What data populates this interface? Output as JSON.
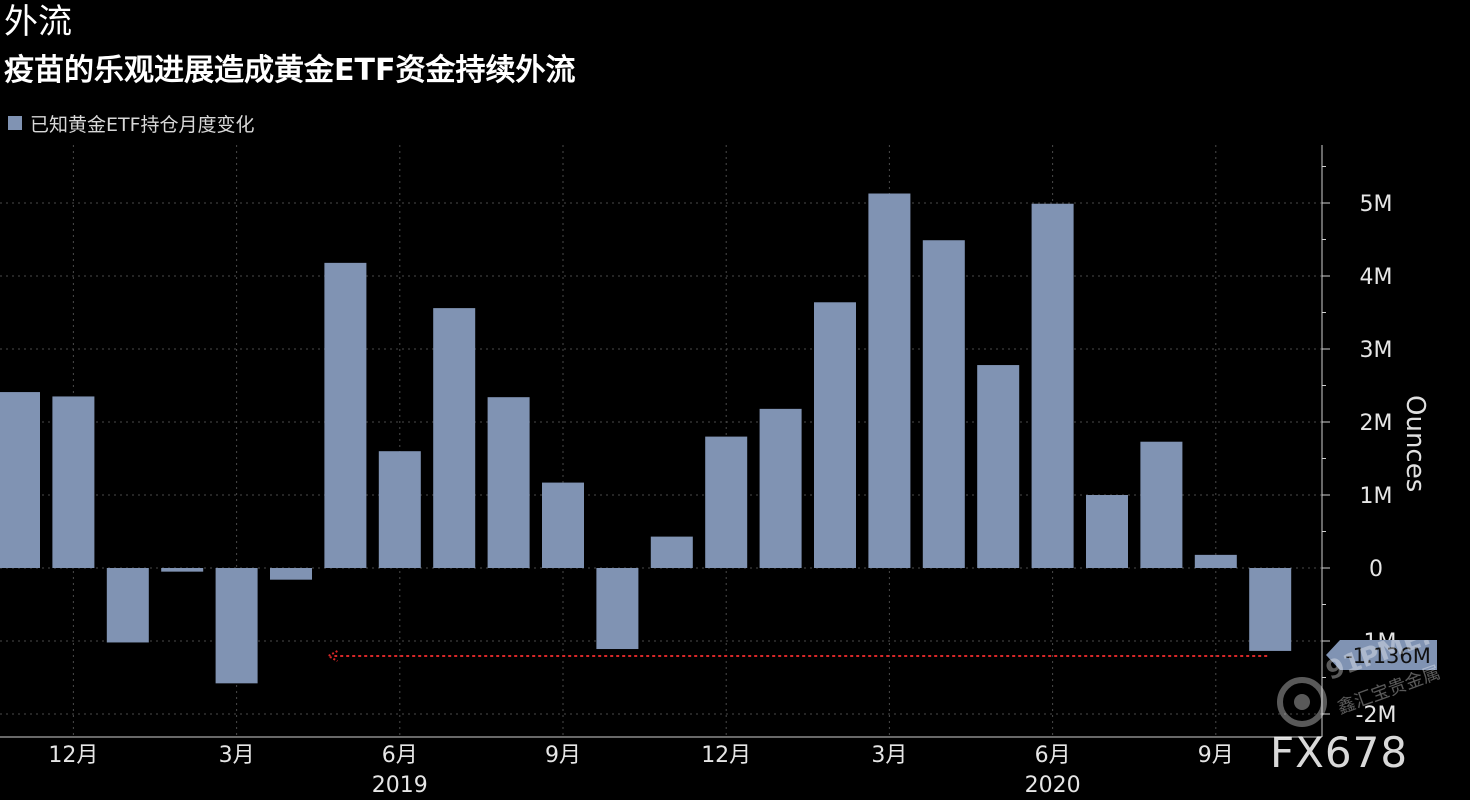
{
  "colors": {
    "background": "#000000",
    "bar": "#8093b3",
    "grid": "#4a4a4a",
    "axis_text": "#e6e6e6",
    "annotation_line": "#d62728",
    "value_label_bg": "#8093b3"
  },
  "watermarks": {
    "fx678": "FX678",
    "site": "91PME.COM",
    "site_chinese": "鑫汇宝贵金属"
  },
  "chart_data": {
    "type": "bar",
    "title": "外流",
    "subtitle": "疫苗的乐观进展造成黄金ETF资金持续外流",
    "ylabel": "Ounces",
    "ylim": [
      -2,
      5.8
    ],
    "y_unit": "M",
    "yticks": [
      "5M",
      "4M",
      "3M",
      "2M",
      "1M",
      "0",
      "-1M",
      "-2M"
    ],
    "grid": true,
    "legend_position": "top-left",
    "series": [
      {
        "name": "已知黄金ETF持仓月度变化",
        "values": [
          2.41,
          2.35,
          -1.02,
          -0.05,
          -1.58,
          -0.16,
          4.18,
          1.6,
          3.56,
          2.34,
          1.17,
          -1.11,
          0.43,
          1.8,
          2.18,
          3.64,
          5.13,
          4.49,
          2.78,
          4.99,
          1.0,
          1.73,
          0.18,
          -1.136
        ]
      }
    ],
    "categories": [
      "2018-11",
      "2018-12",
      "2019-01",
      "2019-02",
      "2019-03",
      "2019-04",
      "2019-05",
      "2019-06",
      "2019-07",
      "2019-08",
      "2019-09",
      "2019-10",
      "2019-11",
      "2019-12",
      "2020-01",
      "2020-02",
      "2020-03",
      "2020-04",
      "2020-05",
      "2020-06",
      "2020-07",
      "2020-08",
      "2020-09",
      "2020-10"
    ],
    "x_tick_labels": [
      {
        "label": "12月",
        "category": "2018-12"
      },
      {
        "label": "3月",
        "category": "2019-03"
      },
      {
        "label": "6月",
        "category": "2019-06"
      },
      {
        "label": "9月",
        "category": "2019-09"
      },
      {
        "label": "12月",
        "category": "2019-12"
      },
      {
        "label": "3月",
        "category": "2020-03"
      },
      {
        "label": "6月",
        "category": "2020-06"
      },
      {
        "label": "9月",
        "category": "2020-09"
      }
    ],
    "year_labels": [
      {
        "label": "2019",
        "category": "2019-06"
      },
      {
        "label": "2020",
        "category": "2020-06"
      }
    ],
    "annotation": {
      "value_label": "-1.136M",
      "value": -1.136,
      "from_category": "2020-10",
      "to_category": "2019-05",
      "style": "dotted red arrow"
    }
  }
}
